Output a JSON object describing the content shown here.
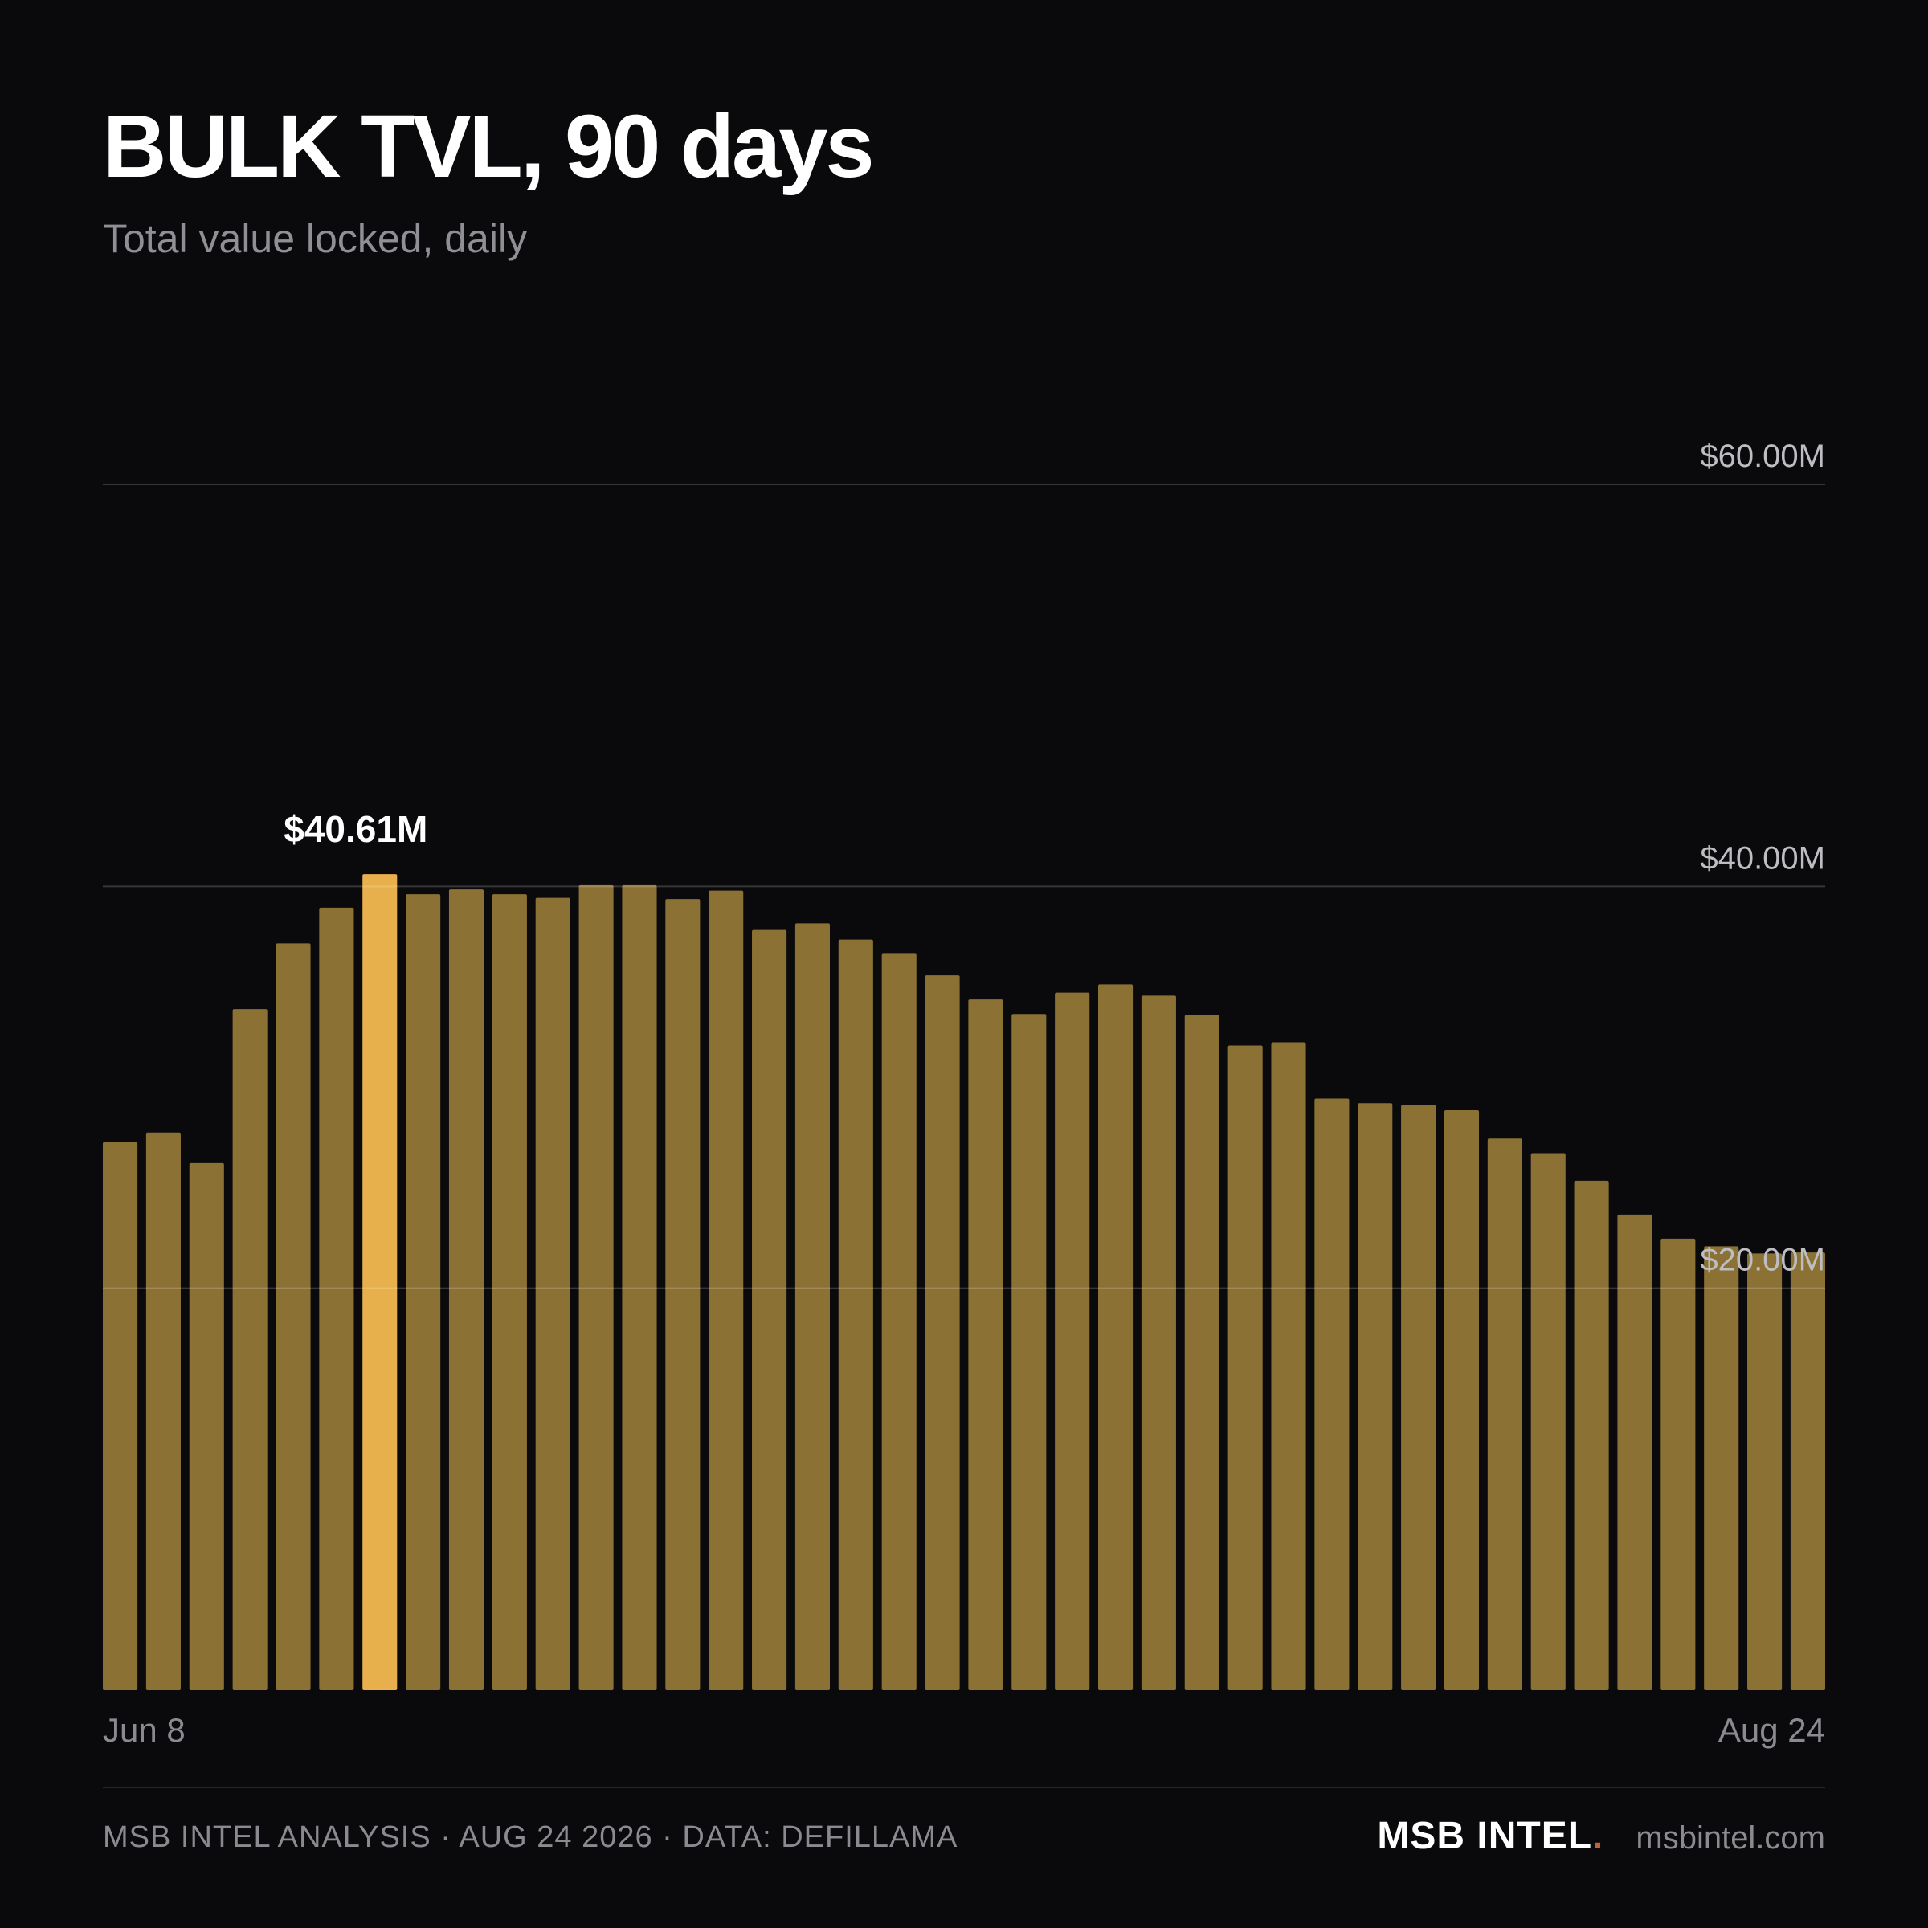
{
  "header": {
    "title": "BULK TVL, 90 days",
    "subtitle": "Total value locked, daily"
  },
  "chart_data": {
    "type": "bar",
    "title": "BULK TVL, 90 days",
    "subtitle": "Total value locked, daily",
    "xlabel": "",
    "ylabel": "",
    "ylim": [
      0,
      60
    ],
    "y_unit": "$M",
    "y_ticks": [
      {
        "value": 20,
        "label": "$20.00M"
      },
      {
        "value": 40,
        "label": "$40.00M"
      },
      {
        "value": 60,
        "label": "$60.00M"
      }
    ],
    "x_tick_labels": [
      "Jun 8",
      "Aug 24"
    ],
    "grid": true,
    "highlight_index": 6,
    "highlight_label": "$40.61M",
    "bar_color": "#8b7234",
    "highlight_color": "#e8b04c",
    "values": [
      27.27,
      27.75,
      26.23,
      33.89,
      37.16,
      38.94,
      40.61,
      39.61,
      39.85,
      39.61,
      39.43,
      40.06,
      40.06,
      39.37,
      39.79,
      37.83,
      38.16,
      37.35,
      36.68,
      35.57,
      34.37,
      33.65,
      34.71,
      35.12,
      34.56,
      33.6,
      32.08,
      32.24,
      29.44,
      29.21,
      29.12,
      28.86,
      27.45,
      26.72,
      25.35,
      23.67,
      22.47,
      22.09,
      21.73,
      21.78
    ]
  },
  "footer": {
    "credit": "MSB INTEL ANALYSIS · AUG 24 2026 · DATA: DEFILLAMA",
    "brand_name": "MSB INTEL",
    "brand_dot": ".",
    "brand_url": "msbintel.com"
  }
}
